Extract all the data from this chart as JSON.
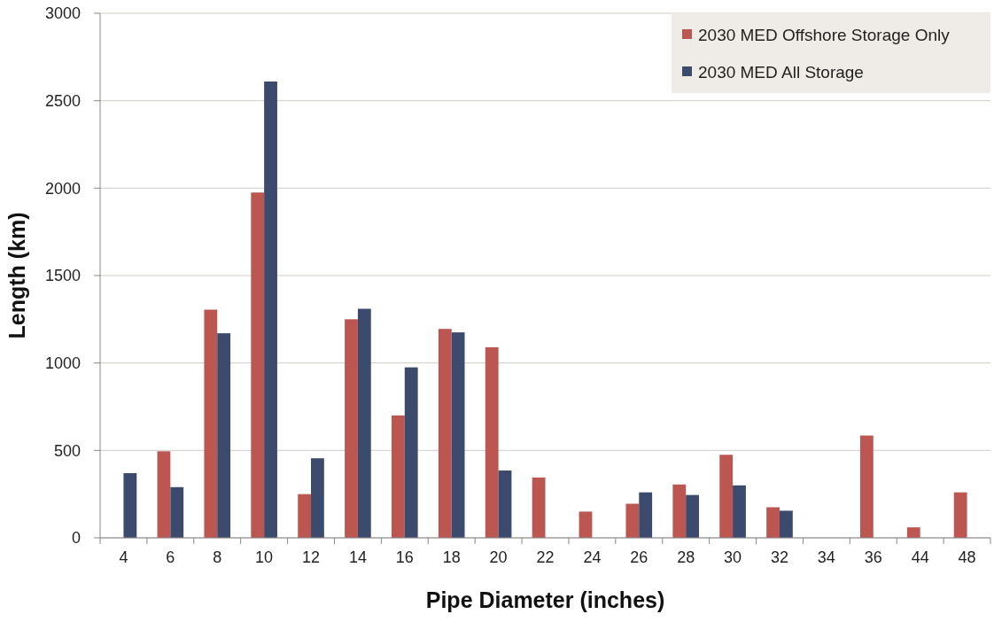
{
  "chart_data": {
    "type": "bar",
    "xlabel": "Pipe Diameter (inches)",
    "ylabel": "Length (km)",
    "categories": [
      "4",
      "6",
      "8",
      "10",
      "12",
      "14",
      "16",
      "18",
      "20",
      "22",
      "24",
      "26",
      "28",
      "30",
      "32",
      "34",
      "36",
      "44",
      "48"
    ],
    "series": [
      {
        "name": "2030 MED Offshore Storage Only",
        "color": "#bb5750",
        "values": [
          null,
          495,
          1305,
          1975,
          250,
          1250,
          700,
          1195,
          1090,
          345,
          150,
          195,
          305,
          475,
          175,
          null,
          585,
          60,
          260
        ]
      },
      {
        "name": "2030 MED All Storage",
        "color": "#3c4a6e",
        "values": [
          370,
          290,
          1170,
          2610,
          455,
          1310,
          975,
          1175,
          385,
          null,
          null,
          260,
          245,
          300,
          155,
          null,
          null,
          null,
          null
        ]
      }
    ],
    "ylim": [
      0,
      3000
    ],
    "yticks": [
      0,
      500,
      1000,
      1500,
      2000,
      2500,
      3000
    ],
    "grid": "y",
    "legend": "top right"
  }
}
